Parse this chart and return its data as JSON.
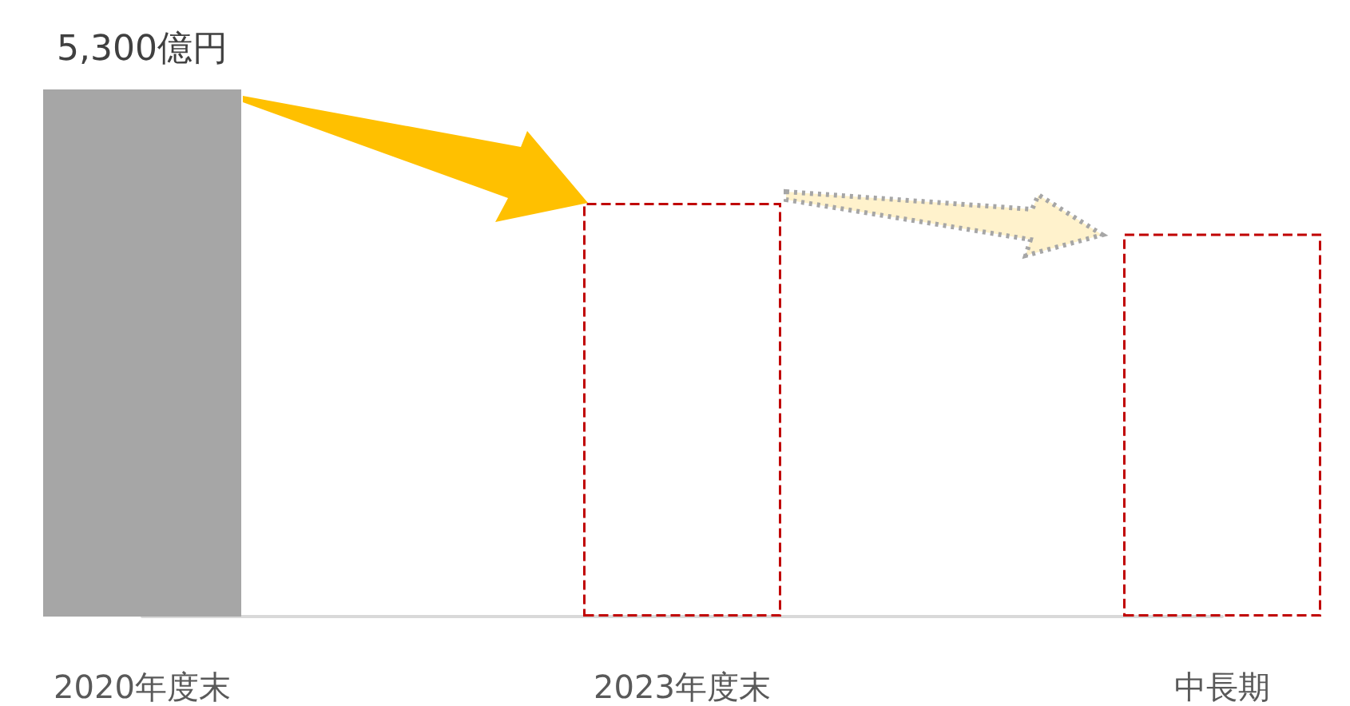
{
  "chart_data": {
    "type": "bar",
    "categories": [
      "2020年度末",
      "2023年度末",
      "中長期"
    ],
    "series": [
      {
        "color": "#a6a6a6",
        "values": [
          5300,
          null,
          null
        ],
        "value_labels": [
          "5,300億円",
          null,
          null
        ]
      },
      {
        "color": "#c00000",
        "values": [
          null,
          4160,
          3850
        ],
        "line_style": "dashed"
      }
    ],
    "tick_labels": "x"
  }
}
